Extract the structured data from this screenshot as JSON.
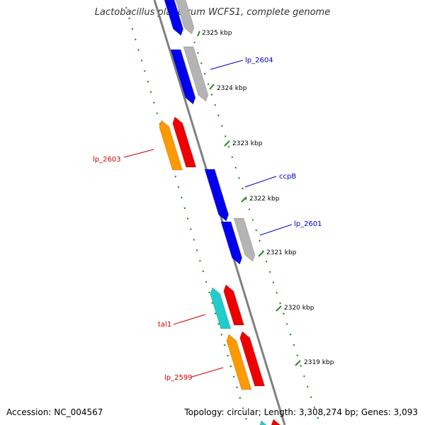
{
  "title": "Lactobacillus plantarum WCFS1, complete genome",
  "footer": {
    "accession": "Accession: NC_004567",
    "topology": "Topology: circular; Length: 3,308,274 bp; Genes: 3,093"
  },
  "colors": {
    "backbone": "#808080",
    "tick": "#228b22",
    "forward_label": "#0000cc",
    "reverse_label": "#cc0000",
    "cds_blue": "#0000ee",
    "cds_gray": "#b4b4b4",
    "cds_red": "#ee0000",
    "cds_orange": "#ff9900",
    "cds_cyan": "#22cccc"
  },
  "ruler": [
    {
      "label": "2325 kbp"
    },
    {
      "label": "2324 kbp"
    },
    {
      "label": "2323 kbp"
    },
    {
      "label": "2322 kbp"
    },
    {
      "label": "2321 kbp"
    },
    {
      "label": "2320 kbp"
    },
    {
      "label": "2319 kbp"
    }
  ],
  "gene_labels": [
    {
      "name": "lp_2604",
      "strand": "forward"
    },
    {
      "name": "lp_2603",
      "strand": "reverse"
    },
    {
      "name": "ccpB",
      "strand": "forward"
    },
    {
      "name": "lp_2601",
      "strand": "forward"
    },
    {
      "name": "tal1",
      "strand": "reverse"
    },
    {
      "name": "lp_2599",
      "strand": "reverse"
    }
  ]
}
